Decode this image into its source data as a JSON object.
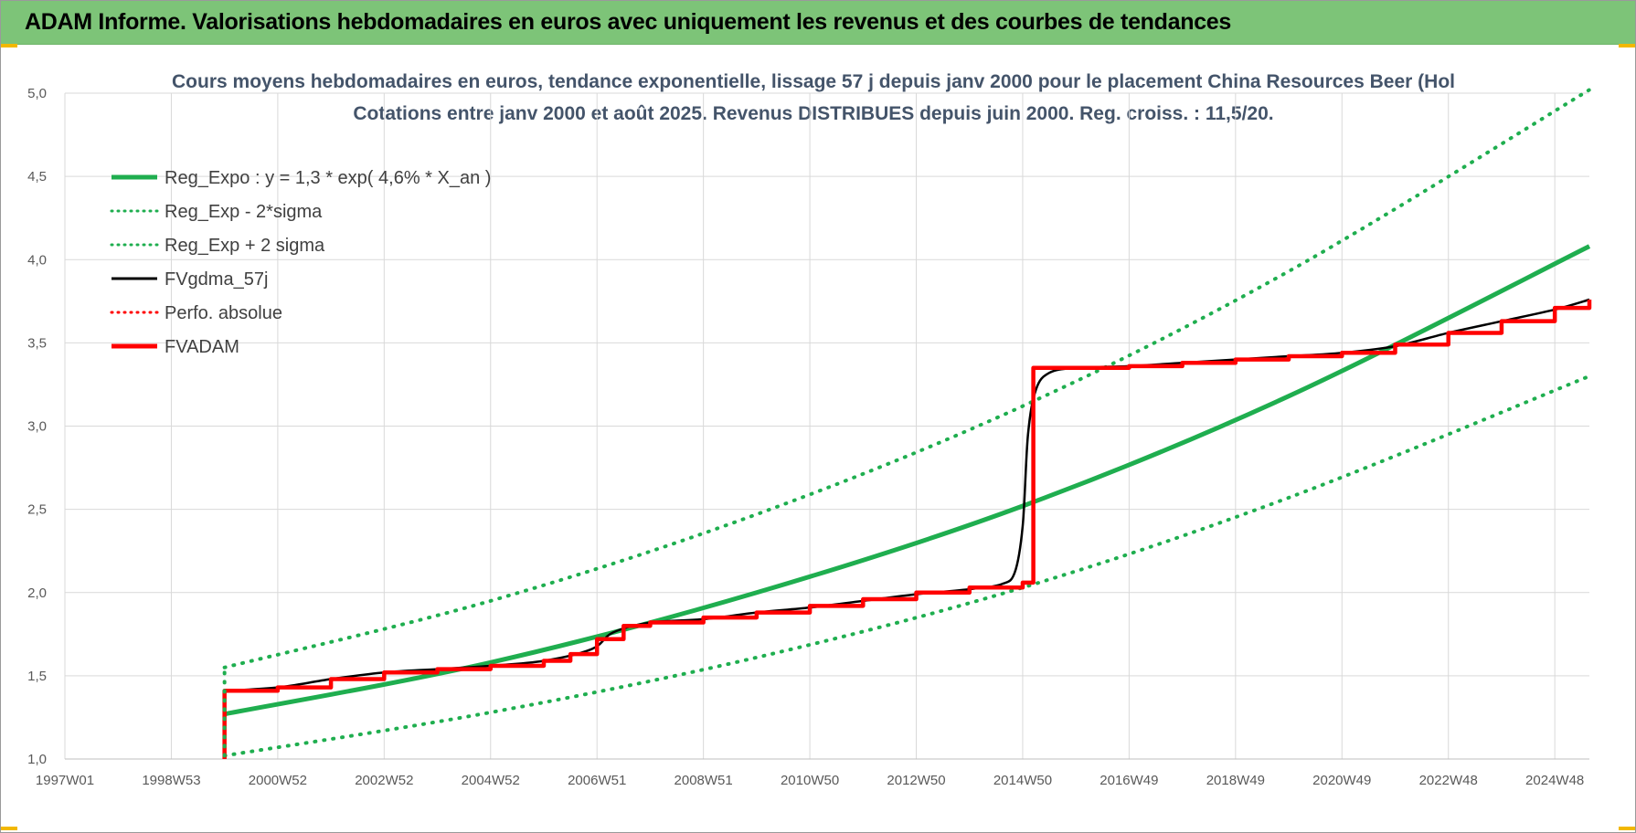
{
  "header": {
    "banner_title": "ADAM Informe. Valorisations hebdomadaires en euros avec uniquement les revenus et des courbes de tendances"
  },
  "colors": {
    "banner_bg": "#7dc478",
    "reg_green": "#1fae4f",
    "fvadam_red": "#ff0000",
    "fvgdma_black": "#000000",
    "title_text": "#44546a",
    "grid": "#d9d9d9"
  },
  "chart_data": {
    "type": "line",
    "title": "Cours moyens hebdomadaires en euros, tendance exponentielle, lissage 57 j depuis janv 2000 pour le placement China Resources Beer (Hol",
    "subtitle": "Cotations entre janv 2000 et août 2025. Revenus DISTRIBUES depuis juin 2000. Reg. croiss. : 11,5/20.",
    "xlabel": "",
    "ylabel": "",
    "ylim": [
      1.0,
      5.0
    ],
    "yticks": [
      "1,0",
      "1,5",
      "2,0",
      "2,5",
      "3,0",
      "3,5",
      "4,0",
      "4,5",
      "5,0"
    ],
    "xlim": [
      1997.0,
      2025.65
    ],
    "xticks": [
      {
        "label": "1997W01",
        "x": 1997.0
      },
      {
        "label": "1998W53",
        "x": 1999.0
      },
      {
        "label": "2000W52",
        "x": 2001.0
      },
      {
        "label": "2002W52",
        "x": 2003.0
      },
      {
        "label": "2004W52",
        "x": 2005.0
      },
      {
        "label": "2006W51",
        "x": 2007.0
      },
      {
        "label": "2008W51",
        "x": 2009.0
      },
      {
        "label": "2010W50",
        "x": 2011.0
      },
      {
        "label": "2012W50",
        "x": 2013.0
      },
      {
        "label": "2014W50",
        "x": 2015.0
      },
      {
        "label": "2016W49",
        "x": 2017.0
      },
      {
        "label": "2018W49",
        "x": 2019.0
      },
      {
        "label": "2020W49",
        "x": 2021.0
      },
      {
        "label": "2022W48",
        "x": 2023.0
      },
      {
        "label": "2024W48",
        "x": 2025.0
      }
    ],
    "grid": true,
    "legend_position": "top-left",
    "series": [
      {
        "name": "Reg_Expo : y = 1,3 * exp( 4,6% *  X_an )",
        "style": "solid-thick",
        "color": "#1fae4f",
        "x": [
          2000.0,
          2005.0,
          2010.0,
          2015.0,
          2020.0,
          2025.65
        ],
        "values": [
          1.27,
          1.58,
          2.0,
          2.52,
          3.18,
          4.08
        ]
      },
      {
        "name": "Reg_Exp - 2*sigma",
        "style": "dotted",
        "color": "#1fae4f",
        "x": [
          2000.0,
          2005.0,
          2010.0,
          2015.0,
          2020.0,
          2025.65
        ],
        "values": [
          1.02,
          1.28,
          1.61,
          2.03,
          2.57,
          3.3
        ]
      },
      {
        "name": "Reg_Exp + 2 sigma",
        "style": "dotted",
        "color": "#1fae4f",
        "x": [
          2000.0,
          2005.0,
          2010.0,
          2015.0,
          2020.0,
          2025.65
        ],
        "values": [
          1.55,
          1.95,
          2.47,
          3.12,
          3.93,
          5.02
        ]
      },
      {
        "name": "FVgdma_57j",
        "style": "solid",
        "color": "#000000",
        "x": [
          2000.0,
          2001.0,
          2002.0,
          2003.0,
          2004.0,
          2005.0,
          2006.0,
          2006.9,
          2007.3,
          2008.0,
          2009.0,
          2010.0,
          2011.0,
          2012.0,
          2013.0,
          2014.0,
          2014.6,
          2014.85,
          2015.0,
          2015.1,
          2015.25,
          2015.5,
          2016.0,
          2017.0,
          2018.0,
          2019.0,
          2020.0,
          2021.0,
          2022.0,
          2023.0,
          2024.0,
          2025.0,
          2025.65
        ],
        "values": [
          1.41,
          1.43,
          1.48,
          1.52,
          1.54,
          1.56,
          1.59,
          1.66,
          1.76,
          1.82,
          1.84,
          1.88,
          1.91,
          1.95,
          1.99,
          2.02,
          2.05,
          2.12,
          2.4,
          2.95,
          3.22,
          3.32,
          3.35,
          3.36,
          3.38,
          3.4,
          3.42,
          3.44,
          3.48,
          3.56,
          3.63,
          3.7,
          3.76
        ]
      },
      {
        "name": "Perfo. absolue",
        "style": "dotted",
        "color": "#ff0000",
        "x": [],
        "values": []
      },
      {
        "name": "FVADAM",
        "style": "solid-thick-step",
        "color": "#ff0000",
        "x": [
          2000.0,
          2000.0,
          2001.0,
          2002.0,
          2003.0,
          2004.0,
          2005.0,
          2006.0,
          2006.5,
          2007.0,
          2007.5,
          2008.0,
          2009.0,
          2010.0,
          2011.0,
          2012.0,
          2013.0,
          2014.0,
          2015.0,
          2015.2,
          2016.0,
          2017.0,
          2018.0,
          2019.0,
          2020.0,
          2021.0,
          2022.0,
          2023.0,
          2024.0,
          2025.0,
          2025.65
        ],
        "values": [
          1.0,
          1.41,
          1.43,
          1.48,
          1.52,
          1.54,
          1.56,
          1.59,
          1.63,
          1.72,
          1.8,
          1.82,
          1.85,
          1.88,
          1.92,
          1.96,
          2.0,
          2.03,
          2.06,
          3.35,
          3.35,
          3.36,
          3.38,
          3.4,
          3.42,
          3.44,
          3.49,
          3.56,
          3.63,
          3.71,
          3.76
        ]
      }
    ]
  }
}
